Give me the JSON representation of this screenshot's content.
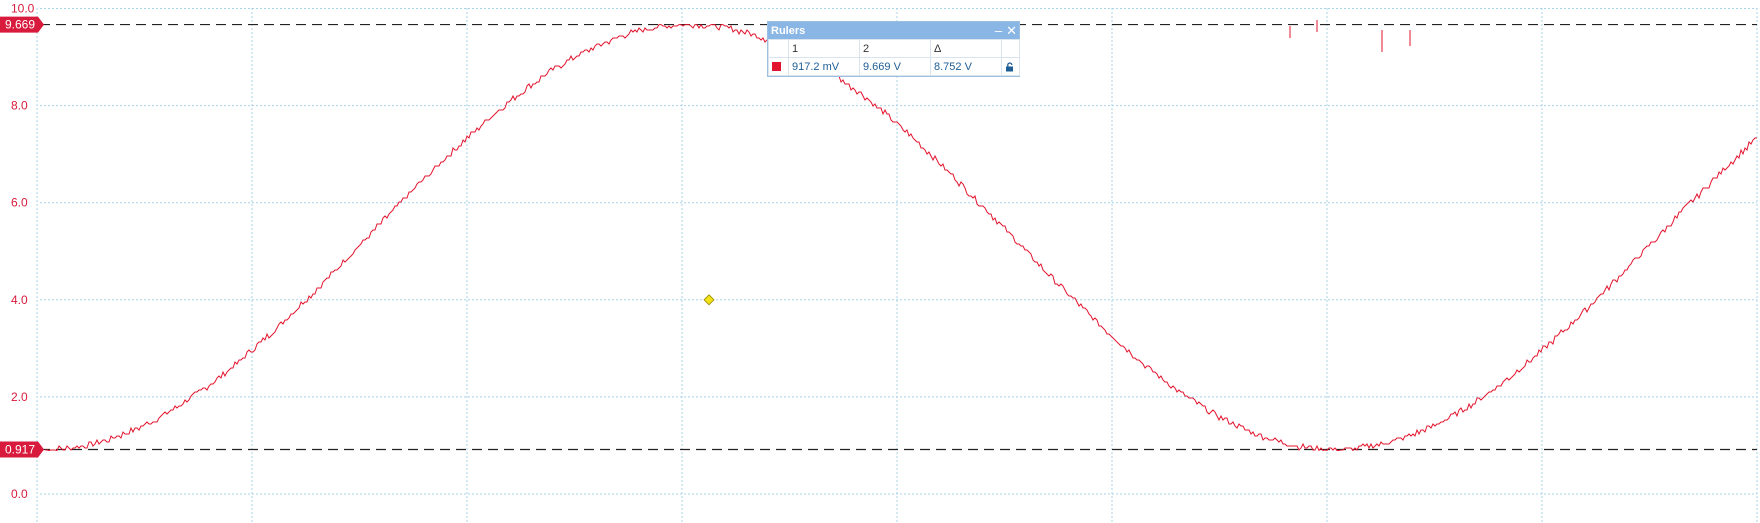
{
  "plot": {
    "y_axis": {
      "ticks": [
        "10.0",
        "8.0",
        "6.0",
        "4.0",
        "2.0",
        "0.0"
      ],
      "values": [
        10,
        8,
        6,
        4,
        2,
        0
      ],
      "min": -0.6,
      "max": 10
    },
    "x_axis": {
      "divisions": 8
    },
    "grid": true,
    "ruler1": {
      "label": "0.917",
      "value": 0.917
    },
    "ruler2": {
      "label": "9.669",
      "value": 9.669
    },
    "trace_color": "#e2142d",
    "ruler_color": "#d81b3c",
    "cursor_marker": {
      "value": 4.0,
      "color": "#f2e21a"
    }
  },
  "rulers_panel": {
    "title": "Rulers",
    "columns": [
      "",
      "1",
      "2",
      "Δ",
      ""
    ],
    "row": {
      "channel_color": "#e2142d",
      "r1": "917.2 mV",
      "r2": "9.669 V",
      "delta": "8.752 V"
    },
    "minimize_icon": "minimize-icon",
    "close_icon": "close-icon",
    "lock_icon": "lock-icon"
  }
}
